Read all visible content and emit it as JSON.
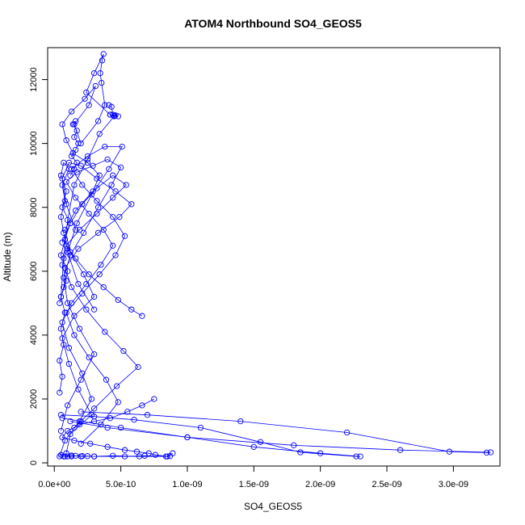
{
  "chart_data": {
    "type": "line",
    "title": "ATOM4 Northbound SO4_GEOS5",
    "xlabel": "SO4_GEOS5",
    "ylabel": "Altitude (m)",
    "xlim": [
      -5e-11,
      3.35e-09
    ],
    "ylim": [
      -100,
      13000
    ],
    "x_ticks": [
      0,
      5e-10,
      1e-09,
      1.5e-09,
      2e-09,
      2.5e-09,
      3e-09
    ],
    "x_tick_labels": [
      "0.0e+00",
      "5.0e-10",
      "1.0e-09",
      "1.5e-09",
      "2.0e-09",
      "2.5e-09",
      "3.0e-09"
    ],
    "y_ticks": [
      0,
      2000,
      4000,
      6000,
      8000,
      10000,
      12000
    ],
    "y_tick_labels": [
      "0",
      "2000",
      "4000",
      "6000",
      "8000",
      "10000",
      "12000"
    ],
    "marker": "open-circle",
    "line_color": "#0000ff",
    "series": [
      {
        "x": [
          9e-11,
          1.2e-10,
          2.8e-10,
          1.8e-10,
          1.1e-10,
          6e-11,
          1.5e-10,
          3e-10,
          2.2e-10,
          1.2e-10,
          8e-11,
          1.6e-10,
          2.9e-10,
          3.4e-10,
          2.5e-10,
          1.4e-10,
          9e-11,
          6e-11,
          1.3e-10,
          2.3e-10,
          3.1e-10,
          2.6e-10,
          1.5e-10,
          2e-10,
          3.3e-10,
          3.8e-10,
          3.55e-10,
          3.45e-10,
          3.6e-10,
          3.7e-10,
          3e-10,
          2.4e-10,
          4.2e-10,
          4.5e-10,
          3.4e-10,
          2.5e-10,
          1.5e-10,
          1e-10,
          7e-11,
          5e-11
        ],
        "y": [
          300,
          900,
          1500,
          2300,
          3100,
          3900,
          4600,
          5200,
          5900,
          6600,
          7300,
          7900,
          8500,
          9000,
          9400,
          9700,
          10100,
          10600,
          11000,
          11400,
          11800,
          11200,
          10600,
          10000,
          10700,
          11200,
          11900,
          12200,
          12600,
          12800,
          12200,
          11600,
          10900,
          10850,
          10300,
          9500,
          8700,
          7600,
          6400,
          5200
        ]
      },
      {
        "x": [
          4e-11,
          8e-11,
          1.9e-10,
          2.8e-10,
          2.1e-10,
          1.1e-10,
          6e-11,
          1.3e-10,
          2.4e-10,
          3.5e-10,
          4.4e-10,
          3.7e-10,
          2.6e-10,
          1.6e-10,
          9e-11,
          1.7e-10,
          2.9e-10,
          4e-10,
          5e-10,
          4.3e-10,
          3.3e-10,
          2.2e-10,
          1.2e-10,
          7e-11,
          1e-10,
          1.9e-10,
          3e-10,
          2e-10,
          1e-10,
          5e-11
        ],
        "y": [
          200,
          700,
          1300,
          2000,
          2800,
          3600,
          4400,
          5000,
          5600,
          6200,
          6800,
          7300,
          7800,
          8300,
          8800,
          9100,
          9300,
          9500,
          9250,
          8700,
          8000,
          7200,
          6500,
          5800,
          5000,
          4200,
          3400,
          2600,
          1800,
          1000
        ]
      },
      {
        "x": [
          2e-10,
          3.5e-10,
          4.8e-10,
          3.9e-10,
          2.6e-10,
          1.5e-10,
          9e-11,
          2.1e-10,
          3.4e-10,
          4.6e-10,
          5.3e-10,
          4.4e-10,
          3.2e-10,
          2.1e-10,
          1.3e-10,
          2.5e-10,
          3.8e-10,
          5.1e-10,
          4.1e-10,
          2.8e-10,
          1.7e-10,
          1e-10,
          1.8e-10,
          3e-10
        ],
        "y": [
          600,
          1200,
          1900,
          2600,
          3300,
          4000,
          4700,
          5300,
          5900,
          6500,
          7100,
          7700,
          8200,
          8700,
          9200,
          9600,
          9900,
          9900,
          9200,
          8400,
          7500,
          6600,
          5600,
          4800
        ]
      },
      {
        "x": [
          1.5e-10,
          3e-10,
          4.7e-10,
          6.3e-10,
          5.2e-10,
          3.8e-10,
          2.4e-10,
          1.3e-10,
          8e-11,
          1.8e-10,
          3.3e-10,
          4.9e-10,
          5.8e-10,
          4.6e-10,
          3.2e-10,
          2e-10,
          1.1e-10,
          6e-11,
          9e-11,
          1.6e-10
        ],
        "y": [
          1100,
          1700,
          2400,
          3000,
          3500,
          4100,
          4800,
          5500,
          6100,
          6700,
          7200,
          7700,
          8100,
          8500,
          8900,
          9300,
          9400,
          8900,
          8100,
          7300
        ]
      },
      {
        "x": [
          6.6e-10,
          5.8e-10,
          4.8e-10,
          3.7e-10,
          2.6e-10,
          1.6e-10,
          9e-11,
          1.9e-10,
          3.2e-10,
          4.4e-10,
          5.4e-10,
          4.4e-10,
          3.2e-10,
          2.1e-10,
          1.2e-10,
          6e-11
        ],
        "y": [
          4600,
          4800,
          5100,
          5500,
          5900,
          6400,
          6800,
          7300,
          7800,
          8300,
          8700,
          9000,
          8600,
          8100,
          7500,
          6900
        ]
      },
      {
        "x": [
          7.5e-10,
          6.6e-10,
          5.5e-10,
          4.2e-10,
          3e-10,
          1.9e-10,
          1e-10,
          6e-11,
          1.5e-10,
          2.7e-10,
          4e-10,
          5.3e-10,
          6.2e-10,
          7.1e-10,
          7.6e-10,
          8.5e-10,
          8.9e-10
        ],
        "y": [
          2000,
          1800,
          1600,
          1400,
          1300,
          1200,
          1000,
          800,
          700,
          600,
          500,
          400,
          350,
          300,
          250,
          200,
          300
        ]
      },
      {
        "x": [
          8e-11,
          1e-10,
          1.3e-10,
          1.6e-10,
          2e-10,
          2.5e-10,
          3e-10,
          5.3e-10,
          6.8e-10,
          8.4e-10,
          8.7e-10,
          6.4e-10,
          4.4e-10,
          3e-10,
          2.1e-10,
          1.3e-10,
          7e-11,
          5e-11
        ],
        "y": [
          200,
          200,
          200,
          220,
          200,
          210,
          200,
          200,
          220,
          200,
          210,
          200,
          220,
          200,
          210,
          230,
          200,
          250
        ]
      },
      {
        "x": [
          5e-11,
          3e-10,
          6e-10,
          1.1e-09,
          1.55e-09,
          1.85e-09,
          2.27e-09,
          2.3e-09,
          2e-09,
          1.5e-09,
          1e-09,
          5e-10,
          2e-10,
          6e-11
        ],
        "y": [
          1500,
          1450,
          1350,
          1100,
          650,
          330,
          200,
          200,
          300,
          500,
          800,
          1100,
          1300,
          1400
        ]
      },
      {
        "x": [
          2e-10,
          7e-10,
          1.4e-09,
          2.2e-09,
          2.97e-09,
          3.25e-09,
          3.28e-09,
          2.6e-09,
          1.8e-09,
          1e-09,
          4e-10,
          1.2e-10
        ],
        "y": [
          1600,
          1500,
          1300,
          950,
          350,
          320,
          330,
          400,
          550,
          800,
          1100,
          1300
        ]
      },
      {
        "x": [
          4e-11,
          6e-11,
          4e-11,
          7e-11,
          5e-11,
          8e-11,
          5e-11,
          9e-11,
          6e-11,
          1e-10,
          7e-11,
          5e-11,
          8e-11,
          6e-11,
          1.1e-10,
          7e-11,
          5e-11,
          9e-11,
          6e-11,
          1.2e-10,
          8e-11,
          5e-11,
          1e-10,
          7e-11,
          4e-11
        ],
        "y": [
          2200,
          2700,
          3200,
          3700,
          4200,
          4700,
          5200,
          5700,
          6200,
          6700,
          7200,
          7700,
          8200,
          8700,
          9200,
          9400,
          9000,
          8500,
          8000,
          7500,
          7000,
          6500,
          6000,
          5500,
          5000
        ]
      },
      {
        "x": [
          4.1e-10,
          4.3e-10,
          4.4e-10,
          4.6e-10,
          4.8e-10,
          4.5e-10,
          4.2e-10
        ],
        "y": [
          11200,
          11150,
          10900,
          10880,
          10850,
          10870,
          10900
        ]
      },
      {
        "x": [
          1.6e-10,
          1.4e-10,
          1.7e-10,
          1.5e-10,
          1.8e-10,
          1.6e-10,
          1.3e-10,
          1.7e-10,
          1.5e-10,
          1.2e-10
        ],
        "y": [
          10700,
          10600,
          10400,
          10200,
          10000,
          9800,
          9600,
          9400,
          9200,
          9000
        ]
      }
    ]
  }
}
